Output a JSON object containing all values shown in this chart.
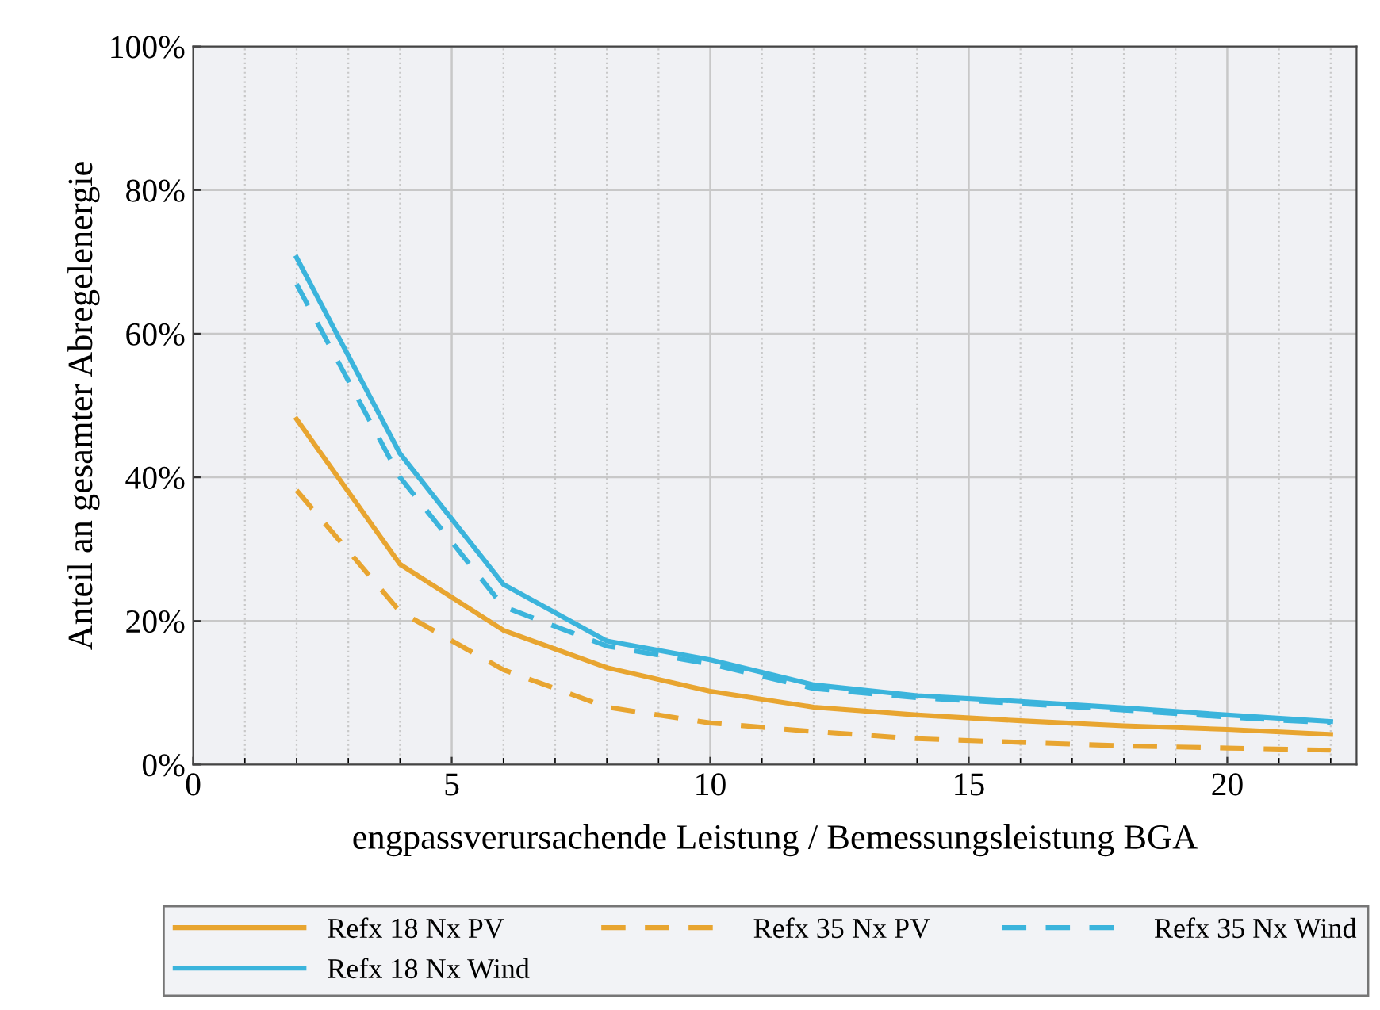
{
  "chart_data": {
    "type": "line",
    "xlabel": "engpassverursachende Leistung / Bemessungsleistung BGA",
    "ylabel": "Anteil an gesamter Abregelenergie",
    "x": [
      2,
      4,
      6,
      8,
      10,
      12,
      14,
      16,
      18,
      20,
      22
    ],
    "series": [
      {
        "name": "Refx 18 Nx PV",
        "color": "#e8a530",
        "line_style": "solid",
        "values": [
          48.1,
          27.9,
          18.7,
          13.5,
          10.2,
          8.0,
          6.9,
          6.1,
          5.4,
          4.9,
          4.2
        ]
      },
      {
        "name": "Refx 18 Nx Wind",
        "color": "#3bb4dc",
        "line_style": "solid",
        "values": [
          70.6,
          43.3,
          25.1,
          17.2,
          14.6,
          11.1,
          9.6,
          8.8,
          7.9,
          6.9,
          6.0
        ]
      },
      {
        "name": "Refx 35 Nx PV",
        "color": "#e8a530",
        "line_style": "dashed",
        "values": [
          38.2,
          21.3,
          13.2,
          8.0,
          5.8,
          4.6,
          3.6,
          3.1,
          2.6,
          2.3,
          2.0
        ]
      },
      {
        "name": "Refx 35 Nx Wind",
        "color": "#3bb4dc",
        "line_style": "dashed",
        "values": [
          66.9,
          40.0,
          22.0,
          16.5,
          14.0,
          10.6,
          9.3,
          8.5,
          7.6,
          6.6,
          5.8
        ]
      }
    ],
    "xlim": [
      0,
      22.5
    ],
    "xticks": [
      0,
      5,
      10,
      15,
      20
    ],
    "ylim": [
      0,
      100
    ],
    "yticks": [
      {
        "value": 0,
        "label": "0%"
      },
      {
        "value": 20,
        "label": "20%"
      },
      {
        "value": 40,
        "label": "40%"
      },
      {
        "value": 60,
        "label": "60%"
      },
      {
        "value": 80,
        "label": "80%"
      },
      {
        "value": 100,
        "label": "100%"
      }
    ],
    "grid": true,
    "legend": "bottom",
    "marker": "none"
  }
}
